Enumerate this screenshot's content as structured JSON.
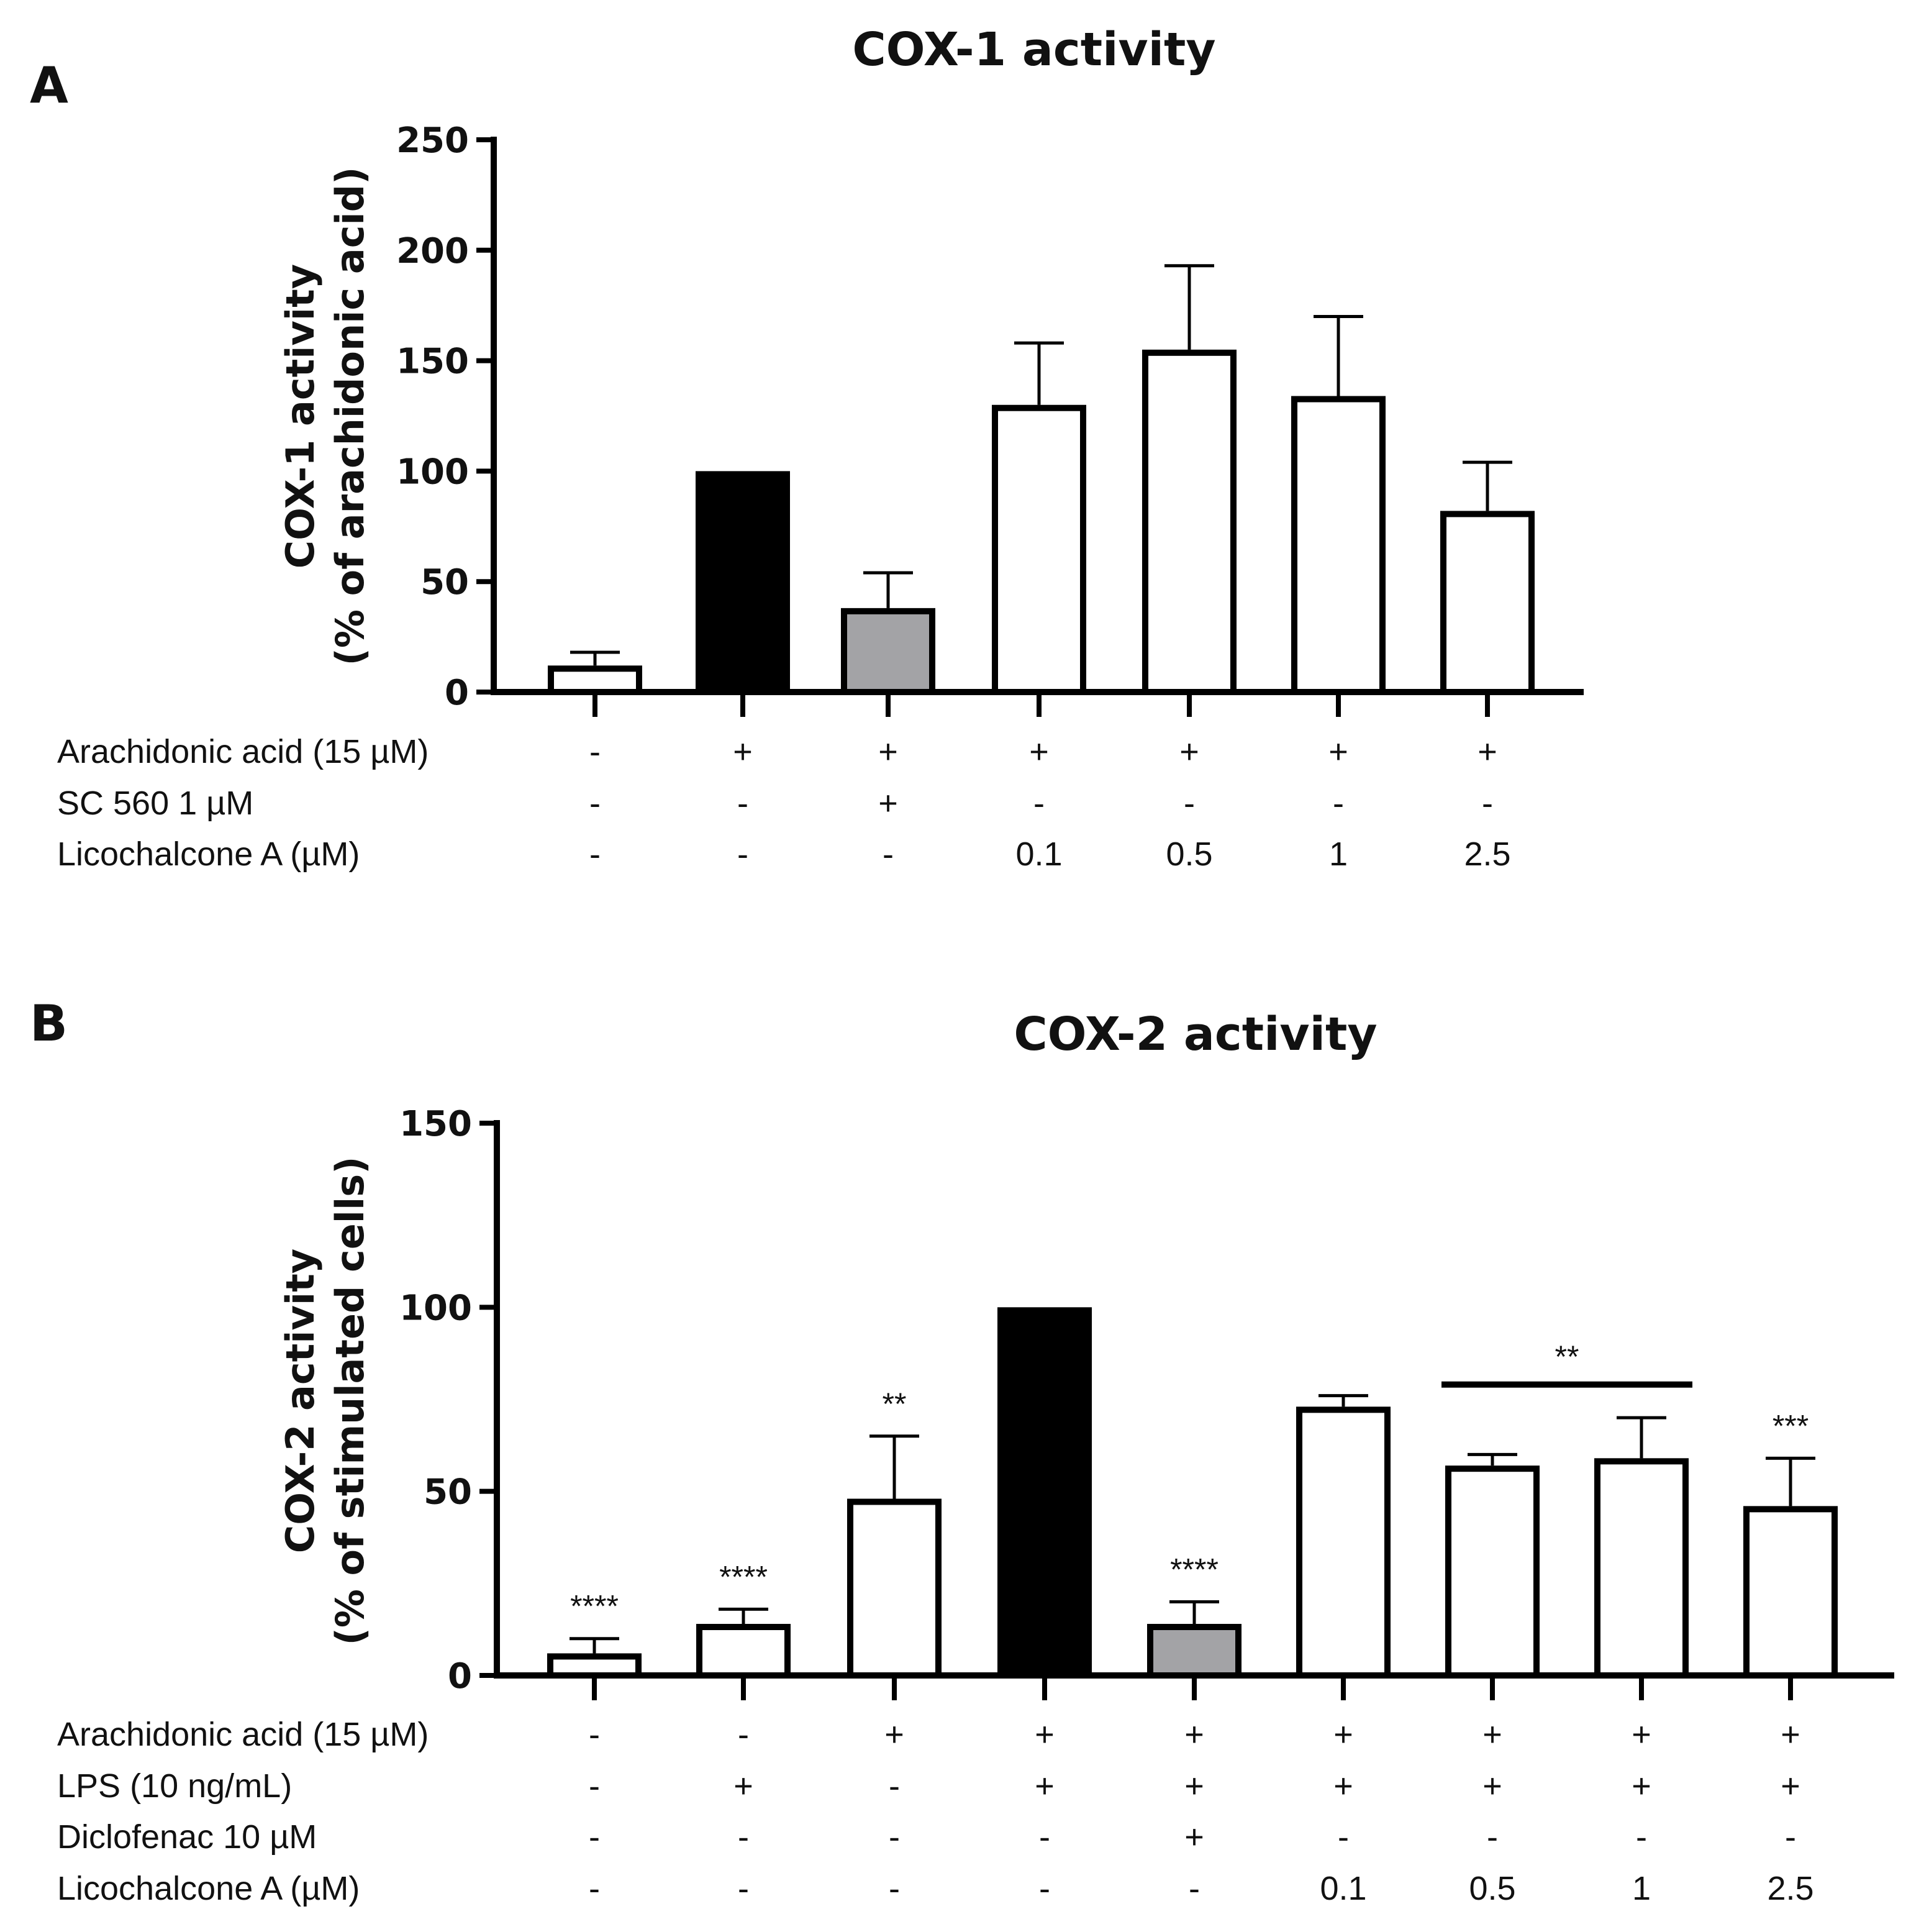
{
  "chart_data": [
    {
      "type": "bar",
      "panel": "A",
      "title": "COX-1 activity",
      "ylabel": "COX-1 activity",
      "ylabel2": "(% of arachidonic acid)",
      "ylim": [
        0,
        250
      ],
      "yticks": [
        0,
        50,
        100,
        150,
        200,
        250
      ],
      "values": [
        12,
        100,
        38,
        130,
        155,
        134,
        82
      ],
      "errors": [
        6,
        0,
        16,
        28,
        38,
        36,
        22
      ],
      "fills": [
        "white",
        "black",
        "gray",
        "white",
        "white",
        "white",
        "white"
      ],
      "significance": [
        "",
        "",
        "",
        "",
        "",
        "",
        ""
      ],
      "conditions": [
        {
          "label": "Arachidonic acid (15 µM)",
          "cells": [
            "-",
            "+",
            "+",
            "+",
            "+",
            "+",
            "+"
          ]
        },
        {
          "label": "SC 560 1 µM",
          "cells": [
            "-",
            "-",
            "+",
            "-",
            "-",
            "-",
            "-"
          ]
        },
        {
          "label": "Licochalcone A (µM)",
          "cells": [
            "-",
            "-",
            "-",
            "0.1",
            "0.5",
            "1",
            "2.5"
          ]
        }
      ],
      "bracket": null
    },
    {
      "type": "bar",
      "panel": "B",
      "title": "COX-2 activity",
      "ylabel": "COX-2 activity",
      "ylabel2": "(% of stimulated cells)",
      "ylim": [
        0,
        150
      ],
      "yticks": [
        0,
        50,
        100,
        150
      ],
      "values": [
        6,
        14,
        48,
        100,
        14,
        73,
        57,
        59,
        46
      ],
      "errors": [
        4,
        4,
        17,
        0,
        6,
        3,
        3,
        11,
        13
      ],
      "fills": [
        "white",
        "white",
        "white",
        "black",
        "gray",
        "white",
        "white",
        "white",
        "white"
      ],
      "significance": [
        "****",
        "****",
        "**",
        "",
        "****",
        "",
        "",
        "",
        "***"
      ],
      "conditions": [
        {
          "label": "Arachidonic acid (15 µM)",
          "cells": [
            "-",
            "-",
            "+",
            "+",
            "+",
            "+",
            "+",
            "+",
            "+"
          ]
        },
        {
          "label": "LPS (10 ng/mL)",
          "cells": [
            "-",
            "+",
            "-",
            "+",
            "+",
            "+",
            "+",
            "+",
            "+"
          ]
        },
        {
          "label": "Diclofenac 10 µM",
          "cells": [
            "-",
            "-",
            "-",
            "-",
            "+",
            "-",
            "-",
            "-",
            "-"
          ]
        },
        {
          "label": "Licochalcone A (µM)",
          "cells": [
            "-",
            "-",
            "-",
            "-",
            "-",
            "0.1",
            "0.5",
            "1",
            "2.5"
          ]
        }
      ],
      "bracket": {
        "from": 6,
        "to": 7,
        "value": 79,
        "label": "**"
      }
    }
  ],
  "colors": {
    "black": "#000000",
    "gray": "#a3a3a6",
    "white": "#ffffff",
    "stroke": "#000000"
  }
}
